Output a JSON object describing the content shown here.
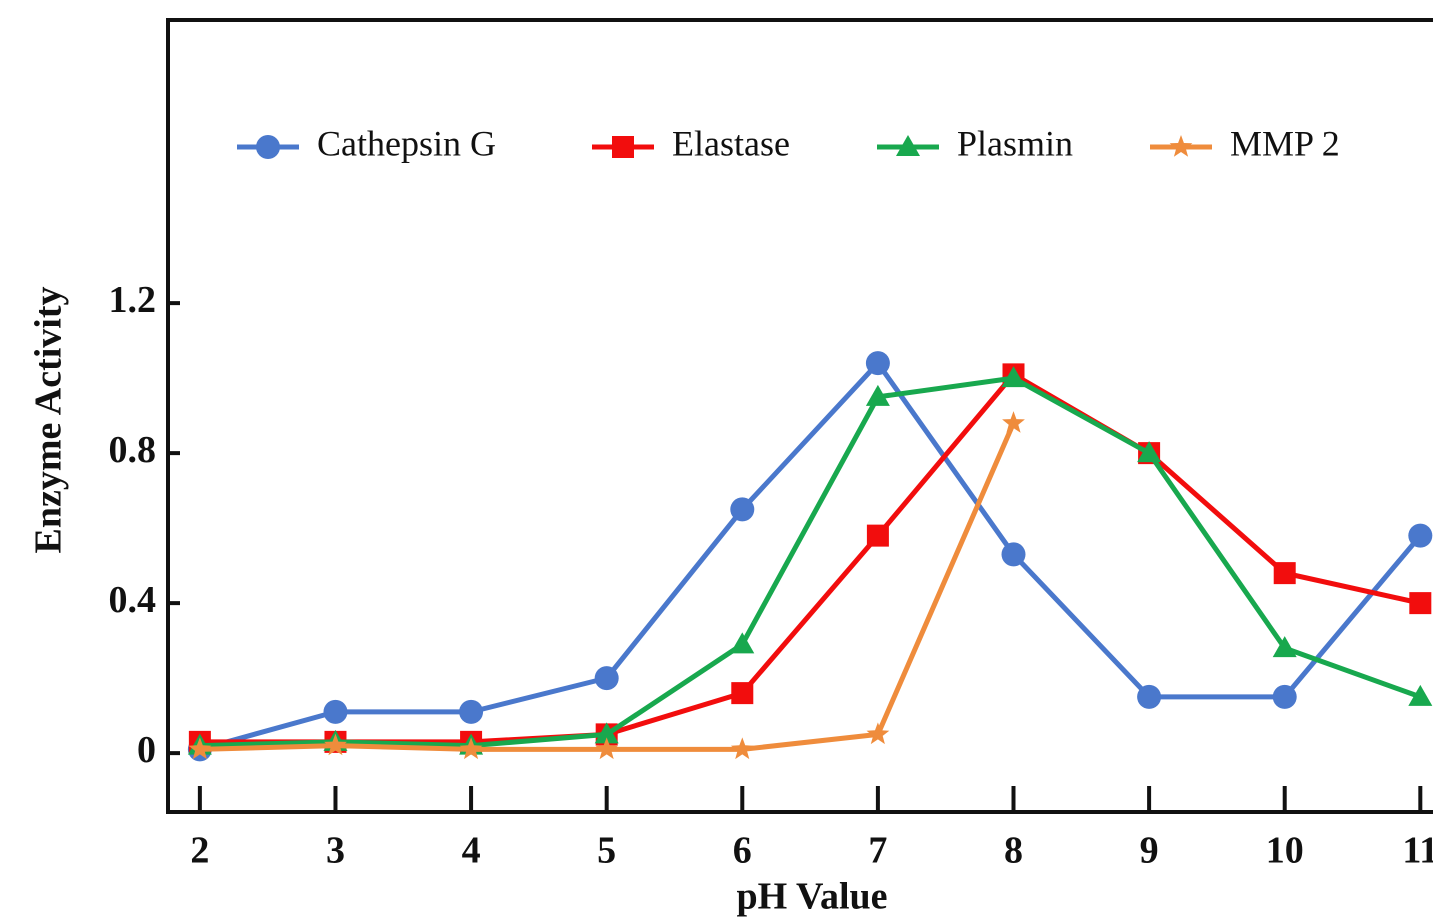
{
  "chart_data": {
    "type": "line",
    "x_label": "pH Value",
    "y_label": "Enzyme Activity",
    "x": [
      2,
      3,
      4,
      5,
      6,
      7,
      8,
      9,
      10,
      11
    ],
    "series": [
      {
        "name": "Cathepsin G",
        "color": "#4a78cc",
        "marker": "circle",
        "values": [
          0.01,
          0.11,
          0.11,
          0.2,
          0.65,
          1.04,
          0.53,
          0.15,
          0.15,
          0.58
        ]
      },
      {
        "name": "Elastase",
        "color": "#f20d0d",
        "marker": "square",
        "values": [
          0.03,
          0.03,
          0.03,
          0.05,
          0.16,
          0.58,
          1.01,
          0.8,
          0.48,
          0.4
        ]
      },
      {
        "name": "Plasmin",
        "color": "#18a84e",
        "marker": "triangle",
        "values": [
          0.02,
          0.03,
          0.02,
          0.05,
          0.29,
          0.95,
          1.0,
          0.8,
          0.28,
          0.15
        ]
      },
      {
        "name": "MMP 2",
        "color": "#ef8c3c",
        "marker": "star",
        "values": [
          0.01,
          0.02,
          0.01,
          0.01,
          0.01,
          0.05,
          0.88,
          null,
          null,
          null
        ]
      }
    ],
    "xlim": [
      1.765,
      11.3
    ],
    "xticks": [
      2,
      3,
      4,
      5,
      6,
      7,
      8,
      9,
      10,
      11
    ],
    "ylim": [
      -0.157,
      1.955
    ],
    "yticks": [
      0,
      0.4,
      0.8,
      1.2
    ],
    "legend": "top"
  }
}
